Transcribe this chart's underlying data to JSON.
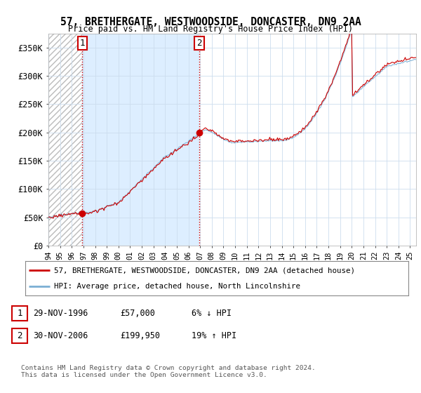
{
  "title": "57, BRETHERGATE, WESTWOODSIDE, DONCASTER, DN9 2AA",
  "subtitle": "Price paid vs. HM Land Registry's House Price Index (HPI)",
  "sale1_year": 1996.91,
  "sale1_price": 57000,
  "sale1_label": "1",
  "sale2_year": 2006.91,
  "sale2_price": 199950,
  "sale2_label": "2",
  "red_line_color": "#cc0000",
  "blue_line_color": "#7bafd4",
  "shade_color": "#ddeeff",
  "annotation_box_color": "#cc0000",
  "ylim": [
    0,
    375000
  ],
  "yticks": [
    0,
    50000,
    100000,
    150000,
    200000,
    250000,
    300000,
    350000
  ],
  "ytick_labels": [
    "£0",
    "£50K",
    "£100K",
    "£150K",
    "£200K",
    "£250K",
    "£300K",
    "£350K"
  ],
  "legend_line1": "57, BRETHERGATE, WESTWOODSIDE, DONCASTER, DN9 2AA (detached house)",
  "legend_line2": "HPI: Average price, detached house, North Lincolnshire",
  "table_row1": [
    "1",
    "29-NOV-1996",
    "£57,000",
    "6% ↓ HPI"
  ],
  "table_row2": [
    "2",
    "30-NOV-2006",
    "£199,950",
    "19% ↑ HPI"
  ],
  "footer": "Contains HM Land Registry data © Crown copyright and database right 2024.\nThis data is licensed under the Open Government Licence v3.0.",
  "background_color": "#ffffff",
  "grid_color": "#ccddee"
}
